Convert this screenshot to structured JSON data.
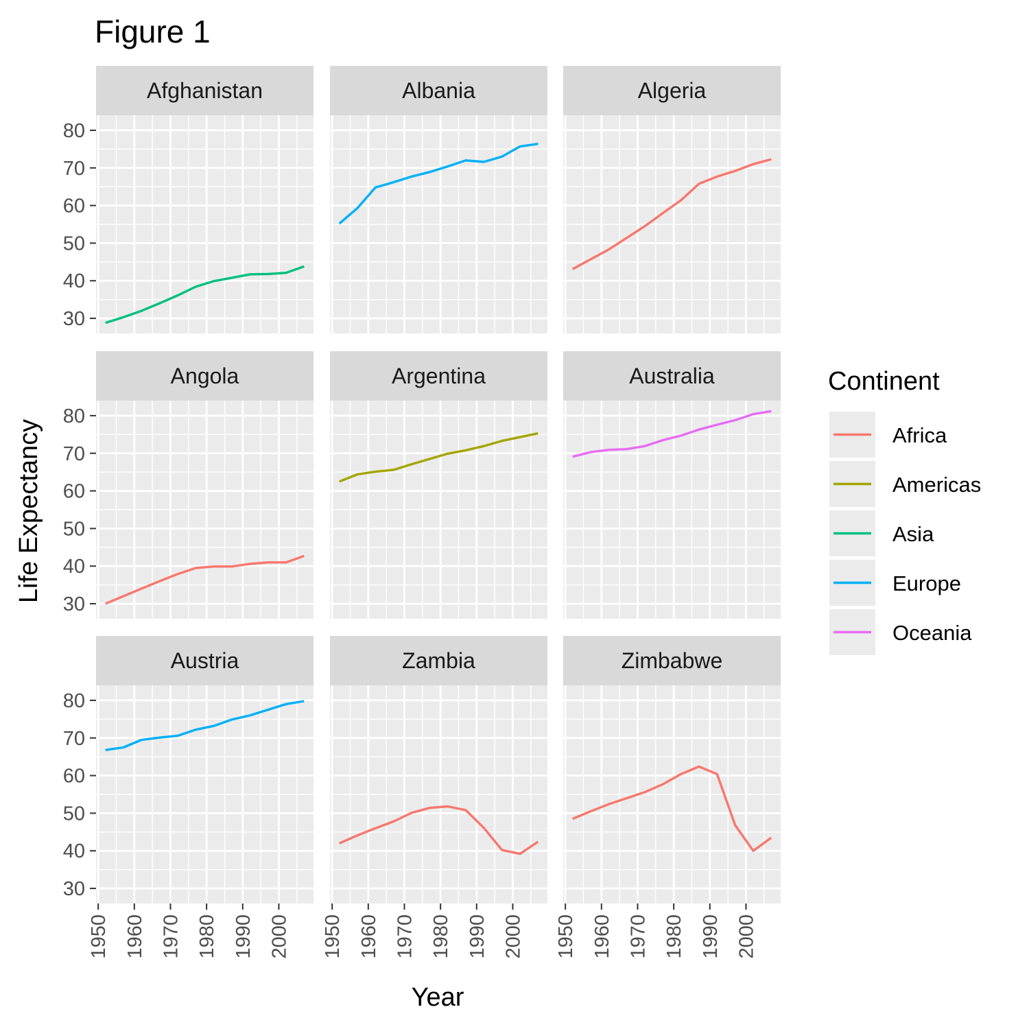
{
  "chart_data": {
    "type": "line",
    "title": "Figure 1",
    "xlabel": "Year",
    "ylabel": "Life Expectancy",
    "xlim": [
      1949.4,
      2009.6
    ],
    "ylim": [
      26.0,
      84.0
    ],
    "x_ticks": [
      1950,
      1960,
      1970,
      1980,
      1990,
      2000
    ],
    "y_ticks": [
      30,
      40,
      50,
      60,
      70,
      80
    ],
    "grid": true,
    "legend": {
      "title": "Continent",
      "position": "right",
      "entries": [
        {
          "name": "Africa",
          "color": "#F8766D"
        },
        {
          "name": "Americas",
          "color": "#A3A500"
        },
        {
          "name": "Asia",
          "color": "#00BF7D"
        },
        {
          "name": "Europe",
          "color": "#00B0F6"
        },
        {
          "name": "Oceania",
          "color": "#E76BF3"
        }
      ]
    },
    "x": [
      1952,
      1957,
      1962,
      1967,
      1972,
      1977,
      1982,
      1987,
      1992,
      1997,
      2002,
      2007
    ],
    "facets": [
      {
        "country": "Afghanistan",
        "continent": "Asia",
        "values": [
          28.8,
          30.3,
          32.0,
          34.0,
          36.1,
          38.4,
          39.9,
          40.8,
          41.7,
          41.8,
          42.1,
          43.8
        ]
      },
      {
        "country": "Albania",
        "continent": "Europe",
        "values": [
          55.2,
          59.3,
          64.8,
          66.2,
          67.7,
          68.9,
          70.4,
          72.0,
          71.6,
          73.0,
          75.7,
          76.4
        ]
      },
      {
        "country": "Algeria",
        "continent": "Africa",
        "values": [
          43.1,
          45.7,
          48.3,
          51.4,
          54.5,
          58.0,
          61.4,
          65.8,
          67.7,
          69.2,
          71.0,
          72.3
        ]
      },
      {
        "country": "Angola",
        "continent": "Africa",
        "values": [
          30.0,
          32.0,
          34.0,
          36.0,
          37.9,
          39.5,
          39.9,
          39.9,
          40.6,
          41.0,
          41.0,
          42.7
        ]
      },
      {
        "country": "Argentina",
        "continent": "Americas",
        "values": [
          62.5,
          64.4,
          65.1,
          65.6,
          67.1,
          68.5,
          69.9,
          70.8,
          71.9,
          73.3,
          74.3,
          75.3
        ]
      },
      {
        "country": "Australia",
        "continent": "Oceania",
        "values": [
          69.1,
          70.3,
          70.9,
          71.1,
          71.9,
          73.5,
          74.7,
          76.3,
          77.6,
          78.8,
          80.4,
          81.2
        ]
      },
      {
        "country": "Austria",
        "continent": "Europe",
        "values": [
          66.8,
          67.5,
          69.5,
          70.1,
          70.6,
          72.2,
          73.2,
          74.9,
          76.0,
          77.5,
          79.0,
          79.8
        ]
      },
      {
        "country": "Zambia",
        "continent": "Africa",
        "values": [
          42.0,
          44.1,
          46.0,
          47.8,
          50.1,
          51.4,
          51.8,
          50.8,
          46.1,
          40.2,
          39.2,
          42.4
        ]
      },
      {
        "country": "Zimbabwe",
        "continent": "Africa",
        "values": [
          48.5,
          50.5,
          52.4,
          54.0,
          55.6,
          57.7,
          60.4,
          62.4,
          60.4,
          46.8,
          40.0,
          43.5
        ]
      }
    ]
  }
}
